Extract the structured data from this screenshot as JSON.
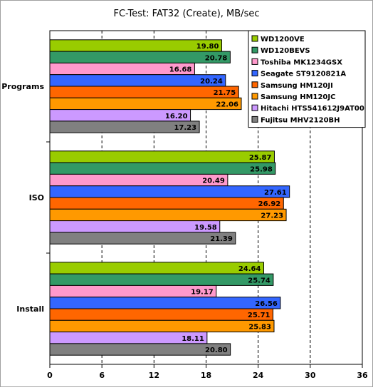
{
  "chart_data": {
    "type": "bar",
    "orientation": "horizontal",
    "title": "FC-Test: FAT32 (Create), MB/sec",
    "xlabel": "",
    "ylabel": "",
    "xlim": [
      0,
      36
    ],
    "x_ticks": [
      "0",
      "6",
      "12",
      "18",
      "24",
      "30",
      "36"
    ],
    "grid": "vertical dashed",
    "legend_position": "top-right",
    "categories": [
      "Programs",
      "ISO",
      "Install"
    ],
    "series": [
      {
        "name": "WD1200VE",
        "color": "#99cc00",
        "values": [
          19.8,
          25.87,
          24.64
        ]
      },
      {
        "name": "WD120BEVS",
        "color": "#339966",
        "values": [
          20.78,
          25.98,
          25.74
        ]
      },
      {
        "name": "Toshiba MK1234GSX",
        "color": "#ff99cc",
        "values": [
          16.68,
          20.49,
          19.17
        ]
      },
      {
        "name": "Seagate ST9120821A",
        "color": "#3366ff",
        "values": [
          20.24,
          27.61,
          26.56
        ]
      },
      {
        "name": "Samsung HM120JI",
        "color": "#ff6600",
        "values": [
          21.75,
          26.92,
          25.71
        ]
      },
      {
        "name": "Samsung HM120JC",
        "color": "#ff9900",
        "values": [
          22.06,
          27.23,
          25.83
        ]
      },
      {
        "name": "Hitachi HTS541612J9AT00",
        "color": "#cc99ff",
        "values": [
          16.2,
          19.58,
          18.11
        ]
      },
      {
        "name": "Fujitsu MHV2120BH",
        "color": "#808080",
        "values": [
          17.23,
          21.39,
          20.8
        ]
      }
    ],
    "value_labels": [
      [
        "19.80",
        "20.78",
        "16.68",
        "20.24",
        "21.75",
        "22.06",
        "16.20",
        "17.23"
      ],
      [
        "25.87",
        "25.98",
        "20.49",
        "27.61",
        "26.92",
        "27.23",
        "19.58",
        "21.39"
      ],
      [
        "24.64",
        "25.74",
        "19.17",
        "26.56",
        "25.71",
        "25.83",
        "18.11",
        "20.80"
      ]
    ]
  }
}
